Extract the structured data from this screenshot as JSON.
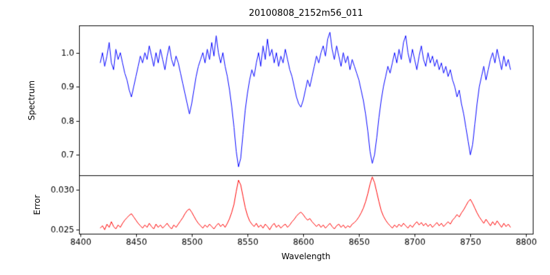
{
  "chart_data": {
    "type": "line",
    "title": "20100808_2152m56_011",
    "xlabel": "Wavelength",
    "x_start": 8418,
    "x_step": 2,
    "xlim": [
      8399,
      8806
    ],
    "x_ticks": [
      8400,
      8450,
      8500,
      8550,
      8600,
      8650,
      8700,
      8750,
      8800
    ],
    "grid": false,
    "legend": "none",
    "panels": [
      {
        "ylabel": "Spectrum",
        "ylim": [
          0.64,
          1.08
        ],
        "y_ticks": [
          0.7,
          0.8,
          0.9,
          1.0
        ],
        "y_tick_labels": [
          "0.7",
          "0.8",
          "0.9",
          "1.0"
        ],
        "series": [
          {
            "name": "spectrum",
            "color": "#0000ff",
            "values": [
              0.97,
              1.0,
              0.96,
              0.99,
              1.03,
              0.97,
              0.95,
              1.01,
              0.98,
              1.0,
              0.97,
              0.94,
              0.92,
              0.89,
              0.87,
              0.9,
              0.93,
              0.96,
              0.99,
              0.97,
              1.0,
              0.98,
              1.02,
              0.99,
              0.96,
              1.0,
              0.97,
              1.01,
              0.98,
              0.95,
              0.99,
              1.02,
              0.98,
              0.96,
              0.99,
              0.97,
              0.94,
              0.91,
              0.88,
              0.85,
              0.82,
              0.85,
              0.89,
              0.93,
              0.96,
              0.98,
              1.0,
              0.97,
              1.01,
              0.98,
              1.03,
              0.99,
              1.05,
              1.0,
              0.97,
              1.0,
              0.96,
              0.93,
              0.89,
              0.84,
              0.78,
              0.71,
              0.665,
              0.69,
              0.76,
              0.83,
              0.88,
              0.92,
              0.95,
              0.93,
              0.97,
              1.0,
              0.96,
              1.02,
              0.98,
              1.04,
              0.99,
              1.01,
              0.97,
              1.0,
              0.96,
              0.99,
              0.97,
              1.01,
              0.98,
              0.95,
              0.93,
              0.9,
              0.87,
              0.85,
              0.84,
              0.86,
              0.89,
              0.92,
              0.9,
              0.93,
              0.96,
              0.99,
              0.97,
              1.0,
              1.02,
              0.99,
              1.04,
              1.06,
              1.01,
              0.98,
              1.02,
              0.99,
              0.96,
              1.0,
              0.97,
              0.99,
              0.95,
              0.98,
              0.96,
              0.94,
              0.92,
              0.89,
              0.86,
              0.82,
              0.77,
              0.71,
              0.675,
              0.7,
              0.75,
              0.81,
              0.86,
              0.9,
              0.93,
              0.96,
              0.94,
              0.97,
              1.0,
              0.97,
              1.01,
              0.98,
              1.03,
              1.05,
              1.0,
              0.97,
              1.01,
              0.98,
              0.95,
              0.99,
              1.02,
              0.98,
              0.96,
              1.0,
              0.97,
              0.99,
              0.96,
              0.98,
              0.95,
              0.97,
              0.94,
              0.96,
              0.93,
              0.95,
              0.92,
              0.9,
              0.87,
              0.89,
              0.85,
              0.82,
              0.78,
              0.74,
              0.7,
              0.73,
              0.79,
              0.85,
              0.9,
              0.93,
              0.96,
              0.92,
              0.95,
              0.98,
              1.0,
              0.97,
              1.01,
              0.98,
              0.95,
              0.99,
              0.96,
              0.98,
              0.95
            ]
          }
        ]
      },
      {
        "ylabel": "Error",
        "ylim": [
          0.0245,
          0.0318
        ],
        "y_ticks": [
          0.025,
          0.03
        ],
        "y_tick_labels": [
          "0.025",
          "0.030"
        ],
        "series": [
          {
            "name": "error",
            "color": "#ff0000",
            "values": [
              0.0252,
              0.0255,
              0.025,
              0.0257,
              0.0253,
              0.026,
              0.0254,
              0.0251,
              0.0256,
              0.0253,
              0.0258,
              0.0262,
              0.0265,
              0.0268,
              0.027,
              0.0266,
              0.0262,
              0.0258,
              0.0255,
              0.0252,
              0.0256,
              0.0253,
              0.0258,
              0.0254,
              0.0251,
              0.0257,
              0.0253,
              0.0256,
              0.0252,
              0.0255,
              0.0258,
              0.0254,
              0.0251,
              0.0256,
              0.0253,
              0.0257,
              0.0261,
              0.0265,
              0.027,
              0.0274,
              0.0276,
              0.0272,
              0.0267,
              0.0262,
              0.0258,
              0.0255,
              0.0252,
              0.0256,
              0.0253,
              0.0257,
              0.0254,
              0.0251,
              0.0255,
              0.0258,
              0.0254,
              0.0257,
              0.0253,
              0.0258,
              0.0264,
              0.0272,
              0.0282,
              0.0298,
              0.0312,
              0.0306,
              0.0292,
              0.0278,
              0.0268,
              0.0261,
              0.0257,
              0.0254,
              0.0258,
              0.0253,
              0.0256,
              0.0252,
              0.0257,
              0.0254,
              0.025,
              0.0255,
              0.0258,
              0.0253,
              0.0256,
              0.0252,
              0.0255,
              0.0257,
              0.0253,
              0.0256,
              0.026,
              0.0263,
              0.0267,
              0.027,
              0.0272,
              0.0269,
              0.0265,
              0.0262,
              0.0264,
              0.026,
              0.0257,
              0.0254,
              0.0257,
              0.0253,
              0.0256,
              0.0252,
              0.0255,
              0.0258,
              0.0254,
              0.0251,
              0.0255,
              0.0257,
              0.0253,
              0.0256,
              0.0252,
              0.0255,
              0.0253,
              0.0257,
              0.0259,
              0.0262,
              0.0266,
              0.0271,
              0.0277,
              0.0285,
              0.0295,
              0.0307,
              0.0316,
              0.0309,
              0.0297,
              0.0285,
              0.0274,
              0.0267,
              0.0262,
              0.0258,
              0.0255,
              0.0252,
              0.0256,
              0.0253,
              0.0257,
              0.0254,
              0.0258,
              0.0255,
              0.0252,
              0.0256,
              0.0253,
              0.0257,
              0.026,
              0.0256,
              0.0259,
              0.0255,
              0.0258,
              0.0254,
              0.0257,
              0.0253,
              0.0256,
              0.0259,
              0.0255,
              0.0258,
              0.0254,
              0.0257,
              0.026,
              0.0257,
              0.0262,
              0.0265,
              0.0269,
              0.0266,
              0.0271,
              0.0275,
              0.028,
              0.0285,
              0.0288,
              0.0283,
              0.0277,
              0.0271,
              0.0266,
              0.0262,
              0.0258,
              0.0263,
              0.0259,
              0.0255,
              0.026,
              0.0256,
              0.0261,
              0.0257,
              0.0253,
              0.0258,
              0.0254,
              0.0257,
              0.0253
            ]
          }
        ]
      }
    ]
  }
}
